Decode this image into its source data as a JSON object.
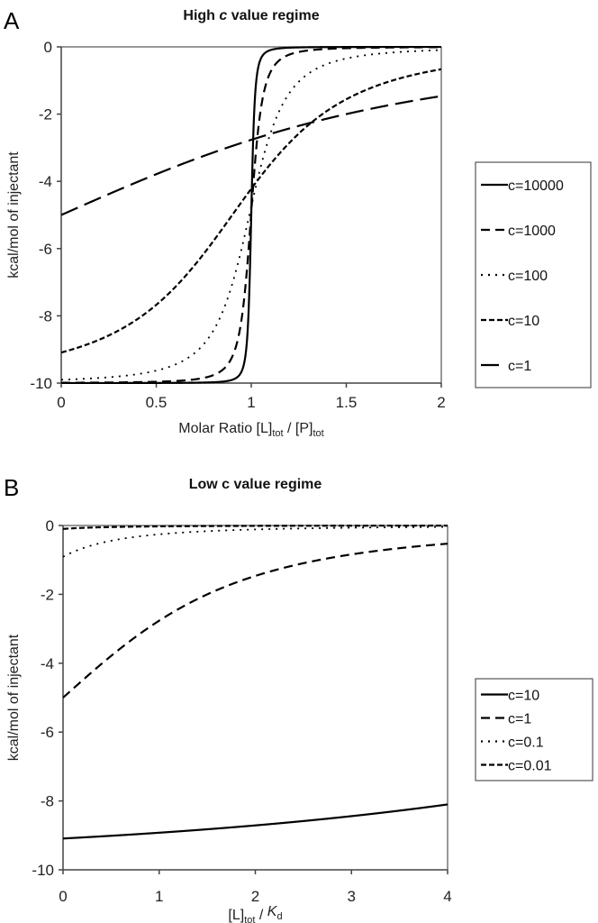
{
  "chart_data": [
    {
      "type": "line",
      "panel_label": "A",
      "title_pre": "High ",
      "title_italic": "c",
      "title_post": " value regime",
      "xlabel_parts": [
        "Molar Ratio [L]",
        "tot",
        " / [P]",
        "tot"
      ],
      "ylabel": "kcal/mol of injectant",
      "x_variable": "molar_ratio",
      "xlim": [
        0,
        2
      ],
      "ylim": [
        -10,
        0
      ],
      "xticks": [
        "0",
        "0.5",
        "1",
        "1.5",
        "2"
      ],
      "yticks": [
        "0",
        "-2",
        "-4",
        "-6",
        "-8",
        "-10"
      ],
      "delta_h": -10,
      "grid": false,
      "legend_position": "right",
      "series": [
        {
          "name": "c=10000",
          "c": 10000,
          "dash": "solid"
        },
        {
          "name": "c=1000",
          "c": 1000,
          "dash": "dash"
        },
        {
          "name": "c=100",
          "c": 100,
          "dash": "dot"
        },
        {
          "name": "c=10",
          "c": 10,
          "dash": "short-dash"
        },
        {
          "name": "c=1",
          "c": 1,
          "dash": "long-dash"
        }
      ]
    },
    {
      "type": "line",
      "panel_label": "B",
      "title_pre": "Low c value regime",
      "title_italic": "",
      "title_post": "",
      "xlabel_parts": [
        "[L]",
        "tot",
        " / ",
        "K",
        "d"
      ],
      "ylabel": "kcal/mol of injectant",
      "x_variable": "ligand_over_kd",
      "xlim": [
        0,
        4
      ],
      "ylim": [
        -10,
        0
      ],
      "xticks": [
        "0",
        "1",
        "2",
        "3",
        "4"
      ],
      "yticks": [
        "0",
        "-2",
        "-4",
        "-6",
        "-8",
        "-10"
      ],
      "delta_h": -10,
      "grid": false,
      "legend_position": "right",
      "series": [
        {
          "name": "c=10",
          "c": 10,
          "dash": "solid"
        },
        {
          "name": "c=1",
          "c": 1,
          "dash": "dash"
        },
        {
          "name": "c=0.1",
          "c": 0.1,
          "dash": "dot"
        },
        {
          "name": "c=0.01",
          "c": 0.01,
          "dash": "short-dash"
        }
      ]
    }
  ]
}
